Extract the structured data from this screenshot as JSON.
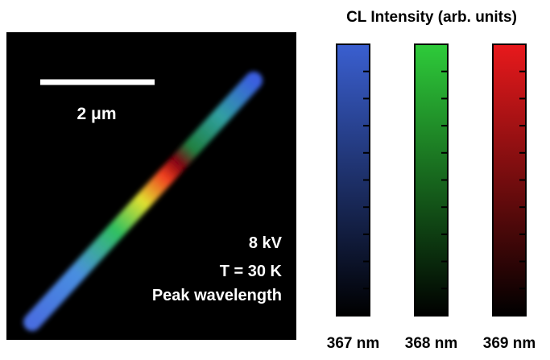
{
  "image": {
    "scale_bar_label": "2 μm",
    "conditions": [
      "8 kV",
      "T = 30 K",
      "Peak wavelength"
    ]
  },
  "legend": {
    "title": "CL Intensity (arb. units)",
    "bars": [
      {
        "label": "367 nm",
        "color": "#3a5fd0"
      },
      {
        "label": "368 nm",
        "color": "#2ecb3a"
      },
      {
        "label": "369 nm",
        "color": "#e8191c"
      }
    ]
  }
}
